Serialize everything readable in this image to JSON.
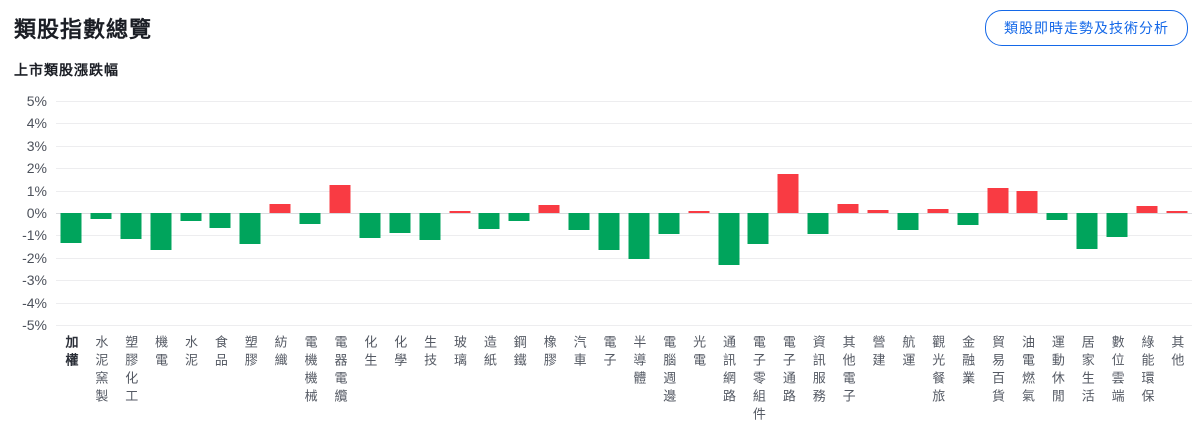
{
  "header": {
    "title": "類股指數總覽",
    "button_label": "類股即時走勢及技術分析"
  },
  "colors": {
    "positive": "#F93B43",
    "negative": "#00A45C",
    "grid_line": "#ededef",
    "zero_line": "#d9dade",
    "y_label": "#4c515b",
    "x_label": "#555a64",
    "x_label_emphasis": "#2b2f38",
    "accent_blue": "#1468E8",
    "title_text": "#1b1e25"
  },
  "chart_data": {
    "type": "bar",
    "title": "上市類股漲跌幅",
    "unit": "%",
    "ylim": [
      -5,
      5
    ],
    "yticks": [
      5,
      4,
      3,
      2,
      1,
      0,
      -1,
      -2,
      -3,
      -4,
      -5
    ],
    "ytick_labels": [
      "5%",
      "4%",
      "3%",
      "2%",
      "1%",
      "0%",
      "-1%",
      "-2%",
      "-3%",
      "-4%",
      "-5%"
    ],
    "grid": true,
    "x_label_orientation": "vertical",
    "emphasized_category": "加權",
    "positive_color_meaning": "上漲(紅)",
    "negative_color_meaning": "下跌(綠)",
    "categories": [
      "加權",
      "水泥窯製",
      "塑膠化工",
      "機電",
      "水泥",
      "食品",
      "塑膠",
      "紡織",
      "電機機械",
      "電器電纜",
      "化生",
      "化學",
      "生技",
      "玻璃",
      "造紙",
      "鋼鐵",
      "橡膠",
      "汽車",
      "電子",
      "半導體",
      "電腦週邊",
      "光電",
      "通訊網路",
      "電子零組件",
      "電子通路",
      "資訊服務",
      "其他電子",
      "營建",
      "航運",
      "觀光餐旅",
      "金融業",
      "貿易百貨",
      "油電燃氣",
      "運動休閒",
      "居家生活",
      "數位雲端",
      "綠能環保",
      "其他"
    ],
    "values": [
      -1.35,
      -0.25,
      -1.15,
      -1.65,
      -0.35,
      -0.65,
      -1.4,
      0.4,
      -0.5,
      1.25,
      -1.1,
      -0.9,
      -1.2,
      0.1,
      -0.7,
      -0.35,
      0.35,
      -0.75,
      -1.65,
      -2.05,
      -0.95,
      0.1,
      -2.3,
      -1.4,
      1.75,
      -0.95,
      0.4,
      0.15,
      -0.75,
      0.2,
      -0.55,
      1.1,
      1.0,
      -0.3,
      -1.6,
      -1.05,
      0.3,
      0.1
    ]
  }
}
